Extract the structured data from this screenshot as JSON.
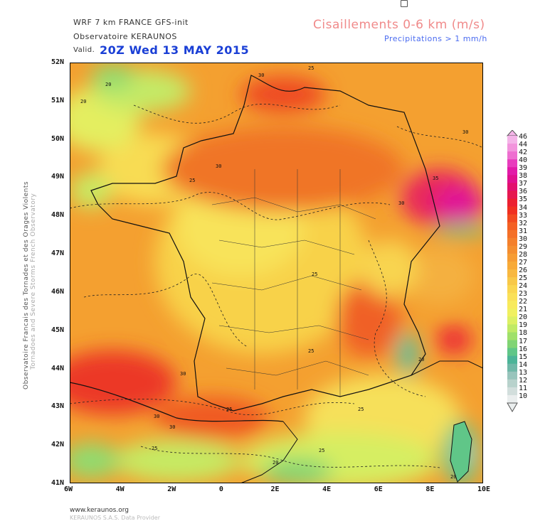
{
  "header": {
    "model": "WRF 7 km FRANCE  GFS-init",
    "observatory": "Observatoire KERAUNOS",
    "valid_label": "Valid.",
    "valid_time": "20Z Wed 13 MAY 2015",
    "parameter": "Cisaillements 0-6 km (m/s)",
    "precip_note": "Precipitations > 1 mm/h"
  },
  "side_text": {
    "line1": "Observatoire Francais des Tornades et des Orages Violents",
    "line2": "Tornadoes and Severe Storms French Observatory"
  },
  "map": {
    "lon_ticks": [
      "6W",
      "4W",
      "2W",
      "0",
      "2E",
      "4E",
      "6E",
      "8E",
      "10E"
    ],
    "lat_ticks": [
      "52N",
      "51N",
      "50N",
      "49N",
      "48N",
      "47N",
      "46N",
      "45N",
      "44N",
      "43N",
      "42N",
      "41N"
    ],
    "contour_labels": [
      "30",
      "25",
      "20",
      "20",
      "30",
      "25",
      "30",
      "35",
      "30",
      "25",
      "25",
      "25",
      "30",
      "20",
      "25",
      "30",
      "30",
      "25",
      "20",
      "25",
      "20"
    ]
  },
  "colorbar": {
    "levels": [
      "46",
      "44",
      "42",
      "40",
      "39",
      "38",
      "37",
      "36",
      "35",
      "34",
      "33",
      "32",
      "31",
      "30",
      "29",
      "28",
      "27",
      "26",
      "25",
      "24",
      "23",
      "22",
      "21",
      "20",
      "19",
      "18",
      "17",
      "16",
      "15",
      "14",
      "13",
      "12",
      "11",
      "10"
    ],
    "colors": [
      "#f4b4e8",
      "#f294dc",
      "#ee6fd0",
      "#e83cbd",
      "#e21aa8",
      "#e0108e",
      "#e2106e",
      "#e61850",
      "#ec2030",
      "#f03020",
      "#f24a20",
      "#f46024",
      "#f47028",
      "#f4802c",
      "#f48e30",
      "#f69c34",
      "#f8aa38",
      "#f8b840",
      "#f8c848",
      "#fad650",
      "#fae058",
      "#f8ea5c",
      "#f0f060",
      "#dcf064",
      "#c0ea66",
      "#a0e06a",
      "#80d474",
      "#60c688",
      "#4cb498",
      "#70b8a8",
      "#98c4bc",
      "#b8d2cc",
      "#d2dedc",
      "#eaeeee"
    ]
  },
  "footer": {
    "url": "www.keraunos.org",
    "copyright": "KERAUNOS S.A.S. Data Provider"
  }
}
